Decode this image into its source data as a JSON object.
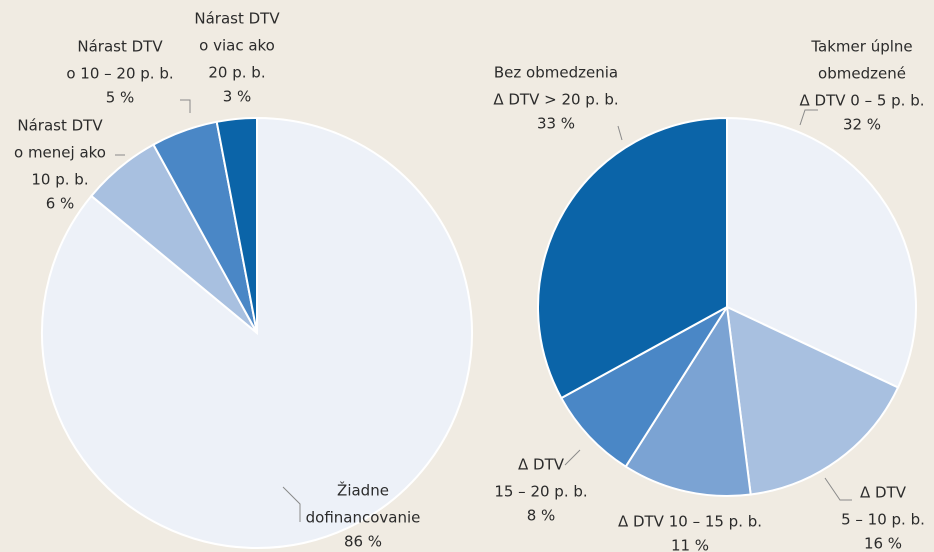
{
  "chart_data": [
    {
      "type": "pie",
      "categories": [
        [
          "Žiadne",
          "dofinancovanie"
        ],
        [
          "Nárast DTV",
          "o menej ako",
          "10 p. b."
        ],
        [
          "Nárast DTV",
          "o 10 – 20 p. b."
        ],
        [
          "Nárast DTV",
          "o viac ako",
          "20 p. b."
        ]
      ],
      "values": [
        86,
        6,
        5,
        3
      ],
      "value_labels": [
        "86 %",
        "6 %",
        "5 %",
        "3 %"
      ],
      "colors": [
        "#edf1f8",
        "#a8c0e0",
        "#4a87c6",
        "#0b64a8"
      ]
    },
    {
      "type": "pie",
      "categories": [
        [
          "Takmer úplne",
          "obmedzené",
          "Δ DTV 0 – 5 p. b."
        ],
        [
          "Δ DTV",
          "5 – 10 p. b."
        ],
        [
          "Δ DTV 10 – 15 p. b."
        ],
        [
          "Δ DTV",
          "15 – 20 p. b."
        ],
        [
          "Bez obmedzenia",
          "Δ DTV > 20 p. b."
        ]
      ],
      "values": [
        32,
        16,
        11,
        8,
        33
      ],
      "value_labels": [
        "32 %",
        "16 %",
        "11 %",
        "8 %",
        "33 %"
      ],
      "colors": [
        "#edf1f8",
        "#a8c0e0",
        "#7ba3d3",
        "#4a87c6",
        "#0b64a8"
      ]
    }
  ]
}
